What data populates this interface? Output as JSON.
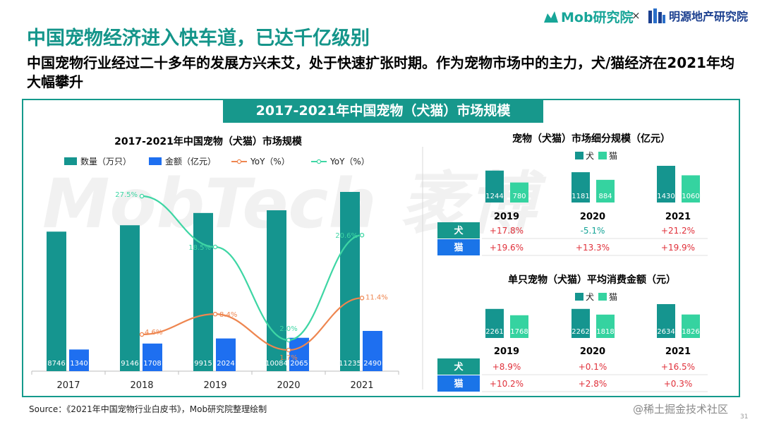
{
  "header": {
    "logo_mob": "Mob研究院",
    "logo_separator": "×",
    "logo_mingyuan": "明源地产研究院",
    "title": "中国宠物经济进入快车道，已达千亿级别",
    "subtitle": "中国宠物行业经过二十多年的发展方兴未艾，处于快速扩张时期。作为宠物市场中的主力，犬/猫经济在2021年均大幅攀升"
  },
  "banner": "2017-2021年中国宠物（犬猫）市场规模",
  "source": "Source：《2021年中国宠物行业白皮书》，Mob研究院整理绘制",
  "watermark": "MobTech 袤博",
  "footer_watermark": "@稀土掘金技术社区",
  "page_number": "31",
  "colors": {
    "teal": "#15958f",
    "blue": "#1e6ff0",
    "orange": "#ee8650",
    "mint": "#3ed6a4",
    "cat_green": "#35d3a0",
    "label_teal": "#17988c",
    "label_blue": "#1a74e8",
    "red": "#e0303a",
    "green": "#17a598"
  },
  "chart_data": [
    {
      "type": "bar",
      "title": "2017-2021年中国宠物（犬猫）市场规模",
      "categories": [
        "2017",
        "2018",
        "2019",
        "2020",
        "2021"
      ],
      "series": [
        {
          "name": "数量（万只）",
          "type": "bar",
          "values": [
            8746,
            9146,
            9915,
            10084,
            11235
          ],
          "labels": [
            "8746",
            "9146",
            "9915",
            "10084",
            "11235"
          ]
        },
        {
          "name": "金额（亿元）",
          "type": "bar",
          "values": [
            1340,
            1708,
            2024,
            2065,
            2490
          ],
          "labels": [
            "1340",
            "1708",
            "2024",
            "2065",
            "2490"
          ]
        },
        {
          "name": "YoY（%）",
          "type": "line",
          "values": [
            null,
            4.6,
            8.4,
            1.7,
            11.4
          ],
          "labels": [
            "",
            "4.6%",
            "8.4%",
            "1.7%",
            "11.4%"
          ]
        },
        {
          "name": "YoY（%）",
          "type": "line",
          "values": [
            null,
            27.5,
            18.5,
            2.0,
            20.6
          ],
          "labels": [
            "",
            "27.5%",
            "18.5%",
            "2.0%",
            "20.6%"
          ]
        }
      ]
    },
    {
      "type": "bar",
      "title": "宠物（犬猫）市场细分规模（亿元）",
      "categories": [
        "2019",
        "2020",
        "2021"
      ],
      "series": [
        {
          "name": "犬",
          "values": [
            1244,
            1181,
            1430
          ]
        },
        {
          "name": "猫",
          "values": [
            780,
            884,
            1060
          ]
        }
      ],
      "yoy_rows": [
        {
          "label": "犬",
          "values": [
            "+17.8%",
            "-5.1%",
            "+21.2%"
          ]
        },
        {
          "label": "猫",
          "values": [
            "+19.6%",
            "+13.3%",
            "+19.9%"
          ]
        }
      ]
    },
    {
      "type": "bar",
      "title": "单只宠物（犬猫）平均消费金额（元）",
      "categories": [
        "2019",
        "2020",
        "2021"
      ],
      "series": [
        {
          "name": "犬",
          "values": [
            2261,
            2262,
            2634
          ]
        },
        {
          "name": "猫",
          "values": [
            1768,
            1818,
            1826
          ]
        }
      ],
      "yoy_rows": [
        {
          "label": "犬",
          "values": [
            "+8.9%",
            "+0.1%",
            "+16.5%"
          ]
        },
        {
          "label": "猫",
          "values": [
            "+10.2%",
            "+2.8%",
            "+0.3%"
          ]
        }
      ]
    }
  ]
}
